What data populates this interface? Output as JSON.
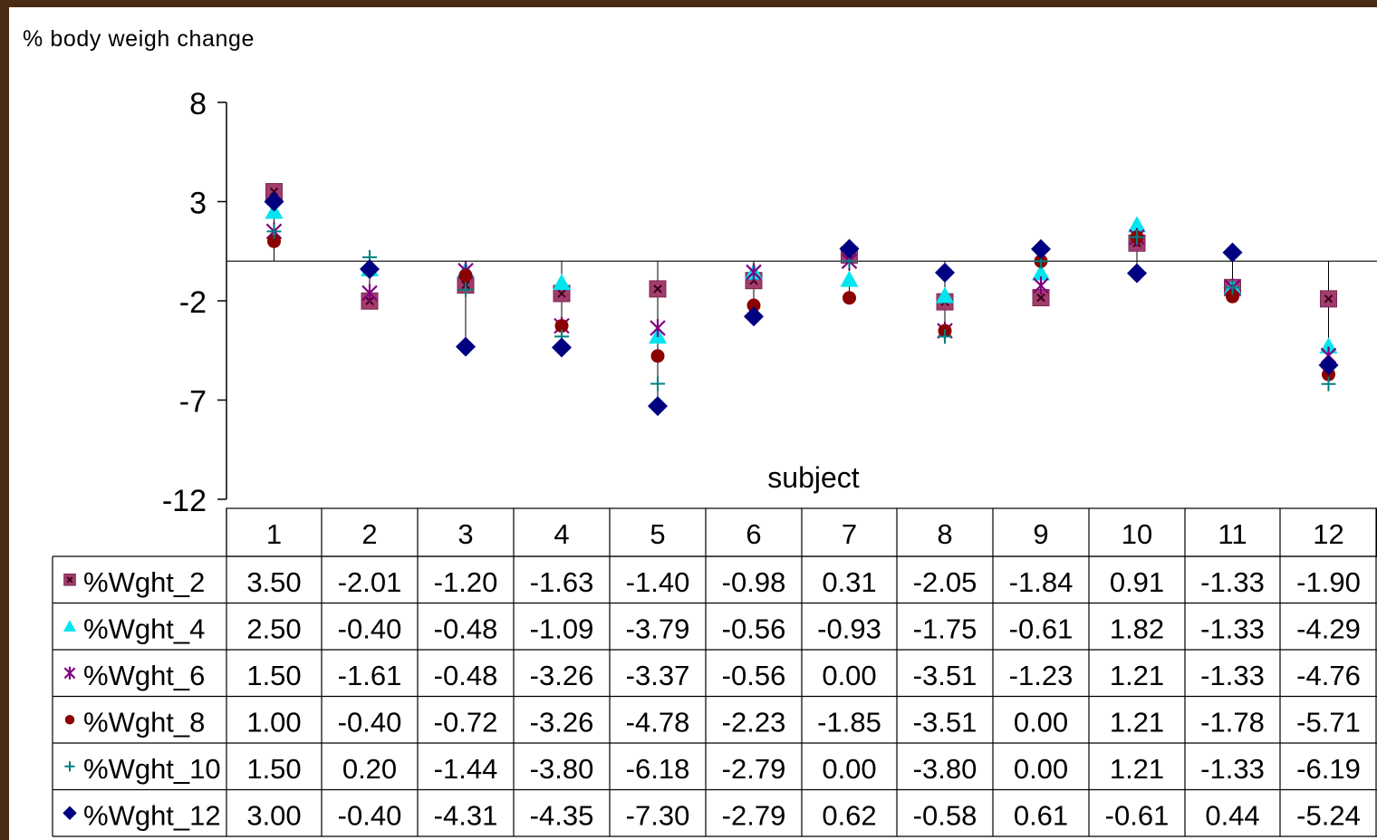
{
  "chart_data": {
    "type": "scatter",
    "ylabel": "% body weigh change",
    "xlabel": "subject",
    "ylim": [
      -12,
      8
    ],
    "yticks": [
      8,
      3,
      -2,
      -7,
      -12
    ],
    "categories": [
      "1",
      "2",
      "3",
      "4",
      "5",
      "6",
      "7",
      "8",
      "9",
      "10",
      "11",
      "12"
    ],
    "grid": false,
    "legend": "table-left",
    "series": [
      {
        "name": "%Wght_2",
        "marker": "square",
        "color": "#a23c6c",
        "values": [
          3.5,
          -2.01,
          -1.2,
          -1.63,
          -1.4,
          -0.98,
          0.31,
          -2.05,
          -1.84,
          0.91,
          -1.33,
          -1.9
        ],
        "labels": [
          "3.50",
          "-2.01",
          "-1.20",
          "-1.63",
          "-1.40",
          "-0.98",
          "0.31",
          "-2.05",
          "-1.84",
          "0.91",
          "-1.33",
          "-1.90"
        ]
      },
      {
        "name": "%Wght_4",
        "marker": "triangle",
        "color": "#00e5ee",
        "values": [
          2.5,
          -0.4,
          -0.48,
          -1.09,
          -3.79,
          -0.56,
          -0.93,
          -1.75,
          -0.61,
          1.82,
          -1.33,
          -4.29
        ],
        "labels": [
          "2.50",
          "-0.40",
          "-0.48",
          "-1.09",
          "-3.79",
          "-0.56",
          "-0.93",
          "-1.75",
          "-0.61",
          "1.82",
          "-1.33",
          "-4.29"
        ]
      },
      {
        "name": "%Wght_6",
        "marker": "star",
        "color": "#800080",
        "values": [
          1.5,
          -1.61,
          -0.48,
          -3.26,
          -3.37,
          -0.56,
          0.0,
          -3.51,
          -1.23,
          1.21,
          -1.33,
          -4.76
        ],
        "labels": [
          "1.50",
          "-1.61",
          "-0.48",
          "-3.26",
          "-3.37",
          "-0.56",
          "0.00",
          "-3.51",
          "-1.23",
          "1.21",
          "-1.33",
          "-4.76"
        ]
      },
      {
        "name": "%Wght_8",
        "marker": "circle",
        "color": "#8b0000",
        "values": [
          1.0,
          -0.4,
          -0.72,
          -3.26,
          -4.78,
          -2.23,
          -1.85,
          -3.51,
          0.0,
          1.21,
          -1.78,
          -5.71
        ],
        "labels": [
          "1.00",
          "-0.40",
          "-0.72",
          "-3.26",
          "-4.78",
          "-2.23",
          "-1.85",
          "-3.51",
          "0.00",
          "1.21",
          "-1.78",
          "-5.71"
        ]
      },
      {
        "name": "%Wght_10",
        "marker": "plus",
        "color": "#008080",
        "values": [
          1.5,
          0.2,
          -1.44,
          -3.8,
          -6.18,
          -2.79,
          0.0,
          -3.8,
          0.0,
          1.21,
          -1.33,
          -6.19
        ],
        "labels": [
          "1.50",
          "0.20",
          "-1.44",
          "-3.80",
          "-6.18",
          "-2.79",
          "0.00",
          "-3.80",
          "0.00",
          "1.21",
          "-1.33",
          "-6.19"
        ]
      },
      {
        "name": "%Wght_12",
        "marker": "diamond",
        "color": "#000080",
        "values": [
          3.0,
          -0.4,
          -4.31,
          -4.35,
          -7.3,
          -2.79,
          0.62,
          -0.58,
          0.61,
          -0.61,
          0.44,
          -5.24
        ],
        "labels": [
          "3.00",
          "-0.40",
          "-4.31",
          "-4.35",
          "-7.30",
          "-2.79",
          "0.62",
          "-0.58",
          "0.61",
          "-0.61",
          "0.44",
          "-5.24"
        ]
      }
    ]
  }
}
